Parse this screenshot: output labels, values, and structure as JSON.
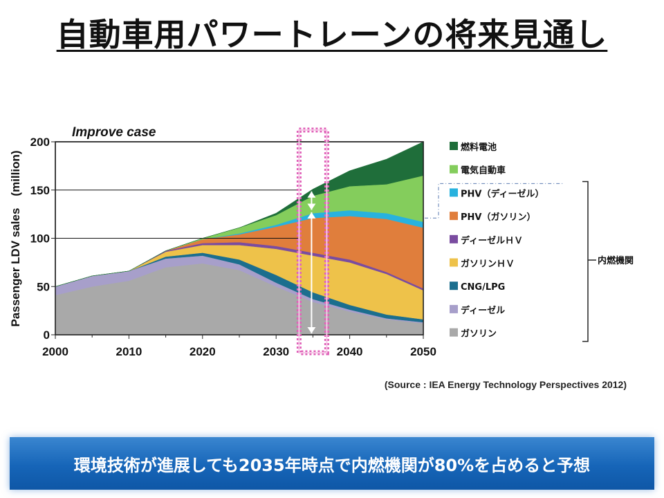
{
  "title": "自動車用パワートレーンの将来見通し",
  "source": "(Source : IEA Energy Technology Perspectives 2012)",
  "banner": "環境技術が進展しても2035年時点で内燃機関が80%を占めると予想",
  "chart_data": {
    "type": "area",
    "stacked": true,
    "title": "Improve case",
    "xlabel": "",
    "ylabel": "Passenger LDV sales　(million)",
    "xlim": [
      2000,
      2050
    ],
    "ylim": [
      0,
      200
    ],
    "x_ticks": [
      2000,
      2010,
      2020,
      2030,
      2040,
      2050
    ],
    "y_ticks": [
      0,
      50,
      100,
      150,
      200
    ],
    "gridlines_y": [
      100,
      150
    ],
    "x": [
      2000,
      2005,
      2010,
      2015,
      2020,
      2025,
      2030,
      2035,
      2040,
      2045,
      2050
    ],
    "series": [
      {
        "name": "ガソリン",
        "color": "#a9a9a9",
        "values": [
          41,
          50,
          56,
          70,
          74,
          67,
          50,
          34,
          24,
          16,
          12
        ]
      },
      {
        "name": "ディーゼル",
        "color": "#a79fca",
        "values": [
          9,
          11,
          10,
          9,
          8,
          6,
          4,
          3,
          2,
          1,
          1
        ]
      },
      {
        "name": "CNG/LPG",
        "color": "#1b6e8e",
        "values": [
          0,
          0,
          0,
          2,
          3,
          5,
          8,
          7,
          5,
          4,
          3
        ]
      },
      {
        "name": "ガソリンＨＶ",
        "color": "#eec24a",
        "values": [
          0,
          0,
          0,
          5,
          8,
          15,
          27,
          38,
          44,
          42,
          30
        ]
      },
      {
        "name": "ディーゼルＨＶ",
        "color": "#7a4ca0",
        "values": [
          0,
          0,
          0,
          1,
          2,
          3,
          3,
          3,
          3,
          2,
          2
        ]
      },
      {
        "name": "PHV（ガソリン）",
        "color": "#e07e3c",
        "values": [
          0,
          0,
          0,
          0,
          4,
          8,
          20,
          36,
          45,
          55,
          63
        ]
      },
      {
        "name": "PHV（ディーゼル）",
        "color": "#28b2de",
        "values": [
          0,
          0,
          0,
          0,
          0,
          1,
          2,
          5,
          6,
          6,
          6
        ]
      },
      {
        "name": "電気自動車",
        "color": "#84cd5c",
        "values": [
          0,
          0,
          0,
          0,
          1,
          6,
          10,
          18,
          25,
          30,
          48
        ]
      },
      {
        "name": "燃料電池",
        "color": "#1f6e3a",
        "values": [
          0,
          0,
          0,
          0,
          0,
          0,
          2,
          7,
          16,
          26,
          35
        ]
      }
    ],
    "legend_position": "right",
    "legend_order": [
      "燃料電池",
      "電気自動車",
      "PHV（ディーゼル）",
      "PHV（ガソリン）",
      "ディーゼルＨＶ",
      "ガソリンＨＶ",
      "CNG/LPG",
      "ディーゼル",
      "ガソリン"
    ],
    "bracket_label": "内燃機関",
    "highlight_x": 2035
  }
}
